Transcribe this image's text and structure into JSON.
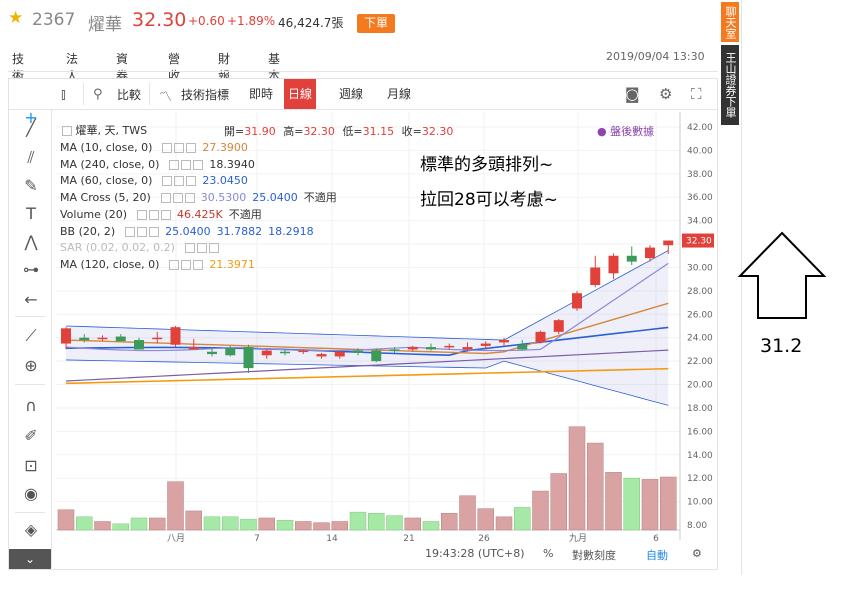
{
  "header": {
    "code": "2367",
    "name": "燿華",
    "price": "32.30",
    "change": "+0.60",
    "pct": "+1.89%",
    "volume": "46,424.7張",
    "order_btn": "下單",
    "date": "2019/09/04 13:30"
  },
  "tabs": [
    "技術",
    "法人",
    "資券",
    "營收",
    "財報",
    "基本"
  ],
  "side": {
    "chat": "聊天室",
    "broker": "王山證券下單"
  },
  "toolbar": {
    "compare": "比較",
    "indicators": "技術指標",
    "periods": [
      "即時",
      "日線",
      "週線",
      "月線"
    ]
  },
  "legend": {
    "title": "燿華, 天, TWS",
    "open_lbl": "開=",
    "open": "31.90",
    "high_lbl": "高=",
    "high": "32.30",
    "low_lbl": "低=",
    "low": "31.15",
    "close_lbl": "收=",
    "close": "32.30",
    "after": "盤後數據",
    "indicators": [
      {
        "name": "MA (10, close, 0)",
        "values": [
          "27.3900"
        ],
        "colors": [
          "#d4883b"
        ]
      },
      {
        "name": "MA (240, close, 0)",
        "values": [
          "18.3940"
        ],
        "colors": [
          "#333333"
        ]
      },
      {
        "name": "MA (60, close, 0)",
        "values": [
          "23.0450"
        ],
        "colors": [
          "#2a5fd6"
        ]
      },
      {
        "name": "MA Cross (5, 20)",
        "values": [
          "30.5300",
          "25.0400",
          "不適用"
        ],
        "colors": [
          "#8a8ad6",
          "#2a5fd6",
          "#333333"
        ]
      },
      {
        "name": "Volume (20)",
        "values": [
          "46.425K",
          "不適用"
        ],
        "colors": [
          "#c0392b",
          "#333333"
        ]
      },
      {
        "name": "BB (20, 2)",
        "values": [
          "25.0400",
          "31.7882",
          "18.2918"
        ],
        "colors": [
          "#2a5fd6",
          "#2a5fd6",
          "#2a5fd6"
        ]
      },
      {
        "name": "SAR (0.02, 0.02, 0.2)",
        "values": [],
        "colors": []
      },
      {
        "name": "MA (120, close, 0)",
        "values": [
          "21.3971"
        ],
        "colors": [
          "#f39c12"
        ]
      }
    ]
  },
  "notes": {
    "line1": "標準的多頭排列~",
    "line2": "拉回28可以考慮~",
    "target": "31.2"
  },
  "footer": {
    "time": "19:43:28 (UTC+8)",
    "pct": "%",
    "log": "對數刻度",
    "auto": "自動"
  },
  "chart_data": {
    "type": "candlestick",
    "yticks": [
      "42.00",
      "40.00",
      "38.00",
      "36.00",
      "34.00",
      "32.00",
      "30.00",
      "28.00",
      "26.00",
      "24.00",
      "22.00",
      "20.00",
      "18.00",
      "16.00",
      "14.00",
      "12.00",
      "10.00",
      "8.00"
    ],
    "current_price_label": "32.30",
    "xticks": [
      "八月",
      "7",
      "14",
      "21",
      "26",
      "九月",
      "6"
    ],
    "candles": [
      {
        "o": 23.5,
        "h": 24.9,
        "l": 23.0,
        "c": 24.8
      },
      {
        "o": 24.0,
        "h": 24.3,
        "l": 23.6,
        "c": 23.8
      },
      {
        "o": 23.9,
        "h": 24.2,
        "l": 23.7,
        "c": 24.0
      },
      {
        "o": 24.1,
        "h": 24.3,
        "l": 23.8,
        "c": 23.7
      },
      {
        "o": 23.8,
        "h": 24.0,
        "l": 23.0,
        "c": 23.0
      },
      {
        "o": 23.9,
        "h": 24.5,
        "l": 23.5,
        "c": 24.0
      },
      {
        "o": 23.4,
        "h": 25.0,
        "l": 23.2,
        "c": 24.9
      },
      {
        "o": 23.0,
        "h": 23.9,
        "l": 23.0,
        "c": 23.2
      },
      {
        "o": 22.8,
        "h": 23.2,
        "l": 22.4,
        "c": 22.6
      },
      {
        "o": 23.1,
        "h": 23.3,
        "l": 22.4,
        "c": 22.5
      },
      {
        "o": 23.2,
        "h": 23.4,
        "l": 21.0,
        "c": 21.4
      },
      {
        "o": 22.5,
        "h": 23.0,
        "l": 22.2,
        "c": 22.9
      },
      {
        "o": 22.8,
        "h": 23.0,
        "l": 22.5,
        "c": 22.7
      },
      {
        "o": 22.8,
        "h": 23.0,
        "l": 22.6,
        "c": 22.9
      },
      {
        "o": 22.4,
        "h": 22.7,
        "l": 22.2,
        "c": 22.6
      },
      {
        "o": 22.4,
        "h": 22.9,
        "l": 22.2,
        "c": 22.8
      },
      {
        "o": 22.9,
        "h": 23.1,
        "l": 22.5,
        "c": 22.7
      },
      {
        "o": 22.9,
        "h": 23.1,
        "l": 21.9,
        "c": 22.0
      },
      {
        "o": 23.0,
        "h": 23.2,
        "l": 22.7,
        "c": 22.9
      },
      {
        "o": 23.0,
        "h": 23.3,
        "l": 22.8,
        "c": 23.2
      },
      {
        "o": 23.2,
        "h": 23.5,
        "l": 22.9,
        "c": 23.0
      },
      {
        "o": 23.3,
        "h": 23.5,
        "l": 23.0,
        "c": 23.3
      },
      {
        "o": 23.0,
        "h": 23.6,
        "l": 22.8,
        "c": 23.2
      },
      {
        "o": 23.3,
        "h": 23.7,
        "l": 23.0,
        "c": 23.5
      },
      {
        "o": 23.6,
        "h": 24.0,
        "l": 23.3,
        "c": 23.8
      },
      {
        "o": 23.4,
        "h": 23.8,
        "l": 22.9,
        "c": 23.0
      },
      {
        "o": 23.6,
        "h": 24.6,
        "l": 23.5,
        "c": 24.5
      },
      {
        "o": 24.5,
        "h": 25.6,
        "l": 24.3,
        "c": 25.5
      },
      {
        "o": 26.5,
        "h": 28.0,
        "l": 26.3,
        "c": 27.8
      },
      {
        "o": 28.5,
        "h": 31.0,
        "l": 28.3,
        "c": 30.0
      },
      {
        "o": 29.5,
        "h": 31.2,
        "l": 29.0,
        "c": 31.0
      },
      {
        "o": 31.0,
        "h": 31.8,
        "l": 30.2,
        "c": 30.5
      },
      {
        "o": 30.8,
        "h": 31.9,
        "l": 30.5,
        "c": 31.7
      },
      {
        "o": 31.9,
        "h": 32.3,
        "l": 31.15,
        "c": 32.3
      }
    ],
    "volumes": [
      9.3,
      8.7,
      8.3,
      8.1,
      8.6,
      8.6,
      11.7,
      9.2,
      8.7,
      8.7,
      8.5,
      8.6,
      8.4,
      8.3,
      8.2,
      8.3,
      9.1,
      9.0,
      8.8,
      8.6,
      8.3,
      9.0,
      10.5,
      9.4,
      8.7,
      9.5,
      10.9,
      12.4,
      16.4,
      15.0,
      12.5,
      12.0,
      11.9,
      12.1
    ]
  }
}
